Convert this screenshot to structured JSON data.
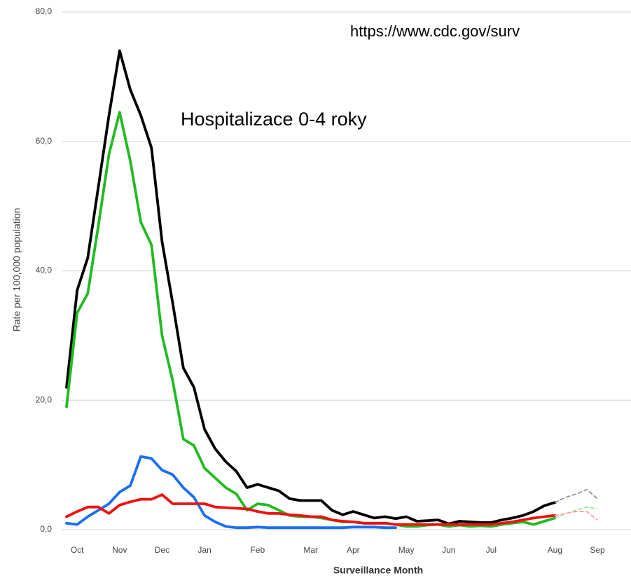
{
  "chart_data": {
    "type": "line",
    "annotations": [
      "https://www.cdc.gov/surv",
      "Hospitalizace 0-4 roky"
    ],
    "xlabel": "Surveillance Month",
    "ylabel": "Rate per 100,000 population",
    "categories": [
      null,
      "Oct",
      null,
      null,
      null,
      "Nov",
      null,
      null,
      null,
      "Dec",
      null,
      null,
      null,
      "Jan",
      null,
      null,
      null,
      null,
      "Feb",
      null,
      null,
      null,
      null,
      "Mar",
      null,
      null,
      null,
      "Apr",
      null,
      null,
      null,
      null,
      "May",
      null,
      null,
      null,
      "Jun",
      null,
      null,
      null,
      "Jul",
      null,
      null,
      null,
      null,
      null,
      "Aug",
      null,
      null,
      null,
      "Sep"
    ],
    "ylim": [
      0,
      80
    ],
    "yticks": [
      {
        "value": 0,
        "label": "0,0"
      },
      {
        "value": 20,
        "label": "20,0"
      },
      {
        "value": 40,
        "label": "40,0"
      },
      {
        "value": 60,
        "label": "60,0"
      },
      {
        "value": 80,
        "label": "80,0"
      }
    ],
    "grid": true,
    "series": [
      {
        "color": "#000000",
        "dashed": false,
        "values": [
          22,
          37,
          42,
          53,
          64,
          74,
          68,
          64,
          59,
          44.5,
          35,
          25,
          22,
          15.5,
          12.5,
          10.5,
          9,
          6.5,
          7,
          6.5,
          6,
          4.8,
          4.5,
          4.5,
          4.5,
          3,
          2.3,
          2.8,
          2.3,
          1.8,
          2,
          1.7,
          2,
          1.3,
          1.4,
          1.5,
          0.9,
          1.3,
          1.2,
          1.1,
          1.1,
          1.5,
          1.8,
          2.2,
          2.8,
          3.7,
          4.2,
          null,
          null,
          null,
          null
        ]
      },
      {
        "color": "#22bb22",
        "dashed": false,
        "values": [
          19,
          33.5,
          36.5,
          47,
          58,
          64.5,
          57,
          47.5,
          44,
          30,
          23,
          14,
          13,
          9.5,
          8,
          6.5,
          5.5,
          3,
          4,
          3.8,
          3,
          2.2,
          2,
          2,
          1.8,
          1.5,
          1.2,
          1.2,
          1,
          1,
          1,
          0.8,
          0.5,
          0.5,
          0.7,
          0.8,
          0.5,
          0.7,
          0.5,
          0.6,
          0.5,
          0.8,
          1,
          1.2,
          0.8,
          1.3,
          1.8,
          null,
          null,
          null,
          null
        ]
      },
      {
        "color": "#1a6ef0",
        "dashed": false,
        "values": [
          1,
          0.8,
          2,
          3,
          4,
          5.8,
          6.8,
          11.3,
          11,
          9.2,
          8.5,
          6.5,
          5,
          2.2,
          1.2,
          0.5,
          0.3,
          0.3,
          0.4,
          0.3,
          0.3,
          0.3,
          0.3,
          0.3,
          0.3,
          0.3,
          0.3,
          0.4,
          0.4,
          0.4,
          0.3,
          0.3,
          null,
          null,
          null,
          null,
          null,
          null,
          null,
          null,
          null,
          null,
          null,
          null,
          null,
          null,
          null,
          null,
          null,
          null,
          null
        ]
      },
      {
        "color": "#ee1111",
        "dashed": false,
        "values": [
          2,
          2.8,
          3.5,
          3.5,
          2.5,
          3.8,
          4.3,
          4.7,
          4.7,
          5.4,
          4,
          4,
          4,
          4,
          3.5,
          3.4,
          3.3,
          3.2,
          2.8,
          2.5,
          2.5,
          2.3,
          2.2,
          2,
          2,
          1.5,
          1.3,
          1.2,
          1,
          1,
          1,
          0.8,
          0.8,
          0.8,
          0.8,
          0.8,
          0.8,
          0.8,
          0.8,
          0.8,
          0.8,
          1,
          1.2,
          1.5,
          1.8,
          2,
          2.2,
          null,
          null,
          null,
          null
        ]
      },
      {
        "color": "#888888",
        "dashed": true,
        "values": [
          null,
          null,
          null,
          null,
          null,
          null,
          null,
          null,
          null,
          null,
          null,
          null,
          null,
          null,
          null,
          null,
          null,
          null,
          null,
          null,
          null,
          null,
          null,
          null,
          null,
          null,
          null,
          null,
          null,
          null,
          null,
          null,
          null,
          null,
          null,
          null,
          null,
          null,
          null,
          null,
          null,
          null,
          null,
          null,
          null,
          null,
          4.2,
          5,
          5.5,
          6.2,
          4.8
        ]
      },
      {
        "color": "#99dd99",
        "dashed": true,
        "values": [
          null,
          null,
          null,
          null,
          null,
          null,
          null,
          null,
          null,
          null,
          null,
          null,
          null,
          null,
          null,
          null,
          null,
          null,
          null,
          null,
          null,
          null,
          null,
          null,
          null,
          null,
          null,
          null,
          null,
          null,
          null,
          null,
          null,
          null,
          null,
          null,
          null,
          null,
          null,
          null,
          null,
          null,
          null,
          null,
          null,
          null,
          1.8,
          2.5,
          3,
          3.5,
          3.2
        ]
      },
      {
        "color": "#ff9999",
        "dashed": true,
        "values": [
          null,
          null,
          null,
          null,
          null,
          null,
          null,
          null,
          null,
          null,
          null,
          null,
          null,
          null,
          null,
          null,
          null,
          null,
          null,
          null,
          null,
          null,
          null,
          null,
          null,
          null,
          null,
          null,
          null,
          null,
          null,
          null,
          null,
          null,
          null,
          null,
          null,
          null,
          null,
          null,
          null,
          null,
          null,
          null,
          null,
          null,
          2.2,
          2.5,
          2.8,
          2.8,
          1.5
        ]
      }
    ]
  }
}
